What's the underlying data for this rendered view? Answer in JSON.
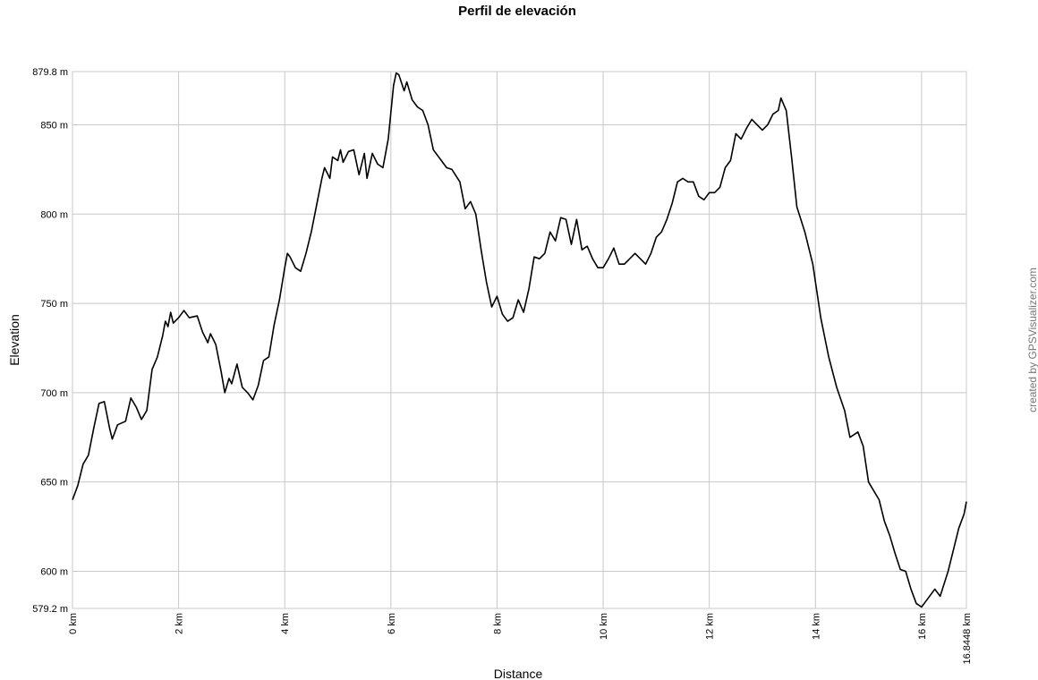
{
  "chart_data": {
    "type": "line",
    "title": "Perfil de elevación",
    "x_label": "Distance",
    "y_label": "Elevation",
    "credit": "created by GPSVisualizer.com",
    "color": "#000000",
    "grid": true,
    "xlim": [
      0,
      16.8448
    ],
    "ylim": [
      579.2,
      879.8
    ],
    "xticks": [
      {
        "value": 0,
        "label": "0 km"
      },
      {
        "value": 2,
        "label": "2 km"
      },
      {
        "value": 4,
        "label": "4 km"
      },
      {
        "value": 6,
        "label": "6 km"
      },
      {
        "value": 8,
        "label": "8 km"
      },
      {
        "value": 10,
        "label": "10 km"
      },
      {
        "value": 12,
        "label": "12 km"
      },
      {
        "value": 14,
        "label": "14 km"
      },
      {
        "value": 16,
        "label": "16 km"
      },
      {
        "value": 16.8448,
        "label": "16.8448 km"
      }
    ],
    "yticks": [
      {
        "value": 579.2,
        "label": "579.2 m"
      },
      {
        "value": 600,
        "label": "600 m"
      },
      {
        "value": 650,
        "label": "650 m"
      },
      {
        "value": 700,
        "label": "700 m"
      },
      {
        "value": 750,
        "label": "750 m"
      },
      {
        "value": 800,
        "label": "800 m"
      },
      {
        "value": 850,
        "label": "850 m"
      },
      {
        "value": 879.8,
        "label": "879.8 m"
      }
    ],
    "x": [
      0,
      0.1,
      0.2,
      0.3,
      0.4,
      0.5,
      0.6,
      0.7,
      0.75,
      0.85,
      1.0,
      1.1,
      1.2,
      1.3,
      1.4,
      1.5,
      1.6,
      1.7,
      1.75,
      1.8,
      1.85,
      1.9,
      2.0,
      2.1,
      2.2,
      2.35,
      2.45,
      2.55,
      2.6,
      2.7,
      2.8,
      2.87,
      2.95,
      3.0,
      3.1,
      3.2,
      3.3,
      3.4,
      3.5,
      3.6,
      3.7,
      3.8,
      3.9,
      4.0,
      4.05,
      4.1,
      4.2,
      4.3,
      4.4,
      4.5,
      4.6,
      4.7,
      4.75,
      4.85,
      4.9,
      5.0,
      5.05,
      5.1,
      5.2,
      5.3,
      5.4,
      5.5,
      5.55,
      5.65,
      5.75,
      5.85,
      5.95,
      6.05,
      6.1,
      6.15,
      6.25,
      6.3,
      6.4,
      6.5,
      6.6,
      6.7,
      6.8,
      6.95,
      7.05,
      7.15,
      7.3,
      7.4,
      7.5,
      7.6,
      7.7,
      7.8,
      7.9,
      8.0,
      8.1,
      8.2,
      8.3,
      8.4,
      8.5,
      8.6,
      8.7,
      8.8,
      8.9,
      9.0,
      9.1,
      9.2,
      9.3,
      9.4,
      9.5,
      9.6,
      9.7,
      9.8,
      9.9,
      10.0,
      10.1,
      10.2,
      10.3,
      10.4,
      10.5,
      10.6,
      10.7,
      10.8,
      10.9,
      11.0,
      11.1,
      11.2,
      11.3,
      11.4,
      11.5,
      11.6,
      11.7,
      11.8,
      11.9,
      12.0,
      12.1,
      12.2,
      12.3,
      12.4,
      12.5,
      12.6,
      12.7,
      12.8,
      12.9,
      13.0,
      13.1,
      13.2,
      13.3,
      13.35,
      13.45,
      13.55,
      13.65,
      13.8,
      13.95,
      14.1,
      14.25,
      14.4,
      14.55,
      14.65,
      14.8,
      14.9,
      15.0,
      15.1,
      15.2,
      15.3,
      15.4,
      15.5,
      15.6,
      15.7,
      15.8,
      15.9,
      16.0,
      16.1,
      16.25,
      16.35,
      16.5,
      16.6,
      16.7,
      16.8,
      16.8448
    ],
    "values": [
      640,
      648,
      660,
      665,
      680,
      694,
      695,
      680,
      674,
      682,
      684,
      697,
      692,
      685,
      690,
      713,
      720,
      732,
      740,
      737,
      745,
      739,
      742,
      746,
      742,
      743,
      734,
      728,
      733,
      727,
      712,
      700,
      708,
      705,
      716,
      703,
      700,
      696,
      704,
      718,
      720,
      738,
      752,
      770,
      778,
      776,
      770,
      768,
      778,
      790,
      805,
      820,
      826,
      820,
      832,
      830,
      836,
      829,
      835,
      836,
      822,
      834,
      820,
      834,
      828,
      826,
      842,
      872,
      879,
      878,
      869,
      874,
      864,
      860,
      858,
      850,
      836,
      830,
      826,
      825,
      818,
      803,
      807,
      800,
      780,
      762,
      748,
      754,
      744,
      740,
      742,
      752,
      745,
      758,
      776,
      775,
      778,
      790,
      785,
      798,
      797,
      783,
      797,
      780,
      782,
      775,
      770,
      770,
      775,
      781,
      772,
      772,
      775,
      778,
      775,
      772,
      778,
      787,
      790,
      797,
      806,
      818,
      820,
      818,
      818,
      810,
      808,
      812,
      812,
      815,
      826,
      830,
      845,
      842,
      848,
      853,
      850,
      847,
      850,
      856,
      858,
      865,
      858,
      832,
      804,
      790,
      772,
      742,
      720,
      703,
      690,
      675,
      678,
      670,
      650,
      645,
      640,
      628,
      620,
      610,
      601,
      600,
      590,
      582,
      580,
      584,
      590,
      586,
      600,
      612,
      624,
      632,
      639
    ]
  }
}
